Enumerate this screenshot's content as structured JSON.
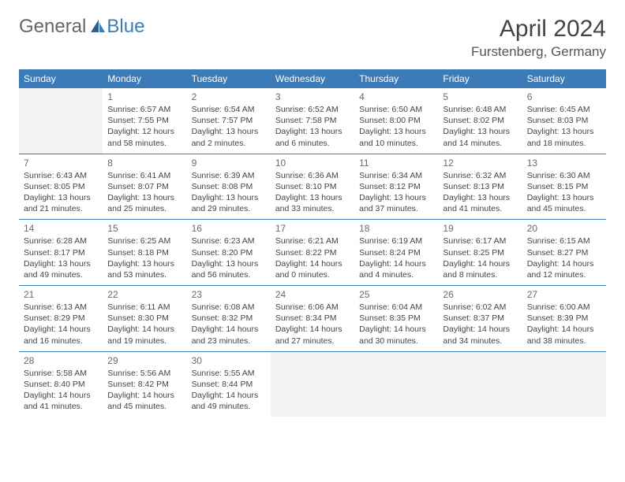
{
  "brand": {
    "part1": "General",
    "part2": "Blue",
    "accent": "#3d7bb8"
  },
  "header": {
    "title": "April 2024",
    "location": "Furstenberg, Germany"
  },
  "colors": {
    "header_bg": "#3d7bb8",
    "header_fg": "#ffffff",
    "border": "#3d7bb8",
    "empty_bg": "#f2f2f2",
    "text": "#444444"
  },
  "day_headers": [
    "Sunday",
    "Monday",
    "Tuesday",
    "Wednesday",
    "Thursday",
    "Friday",
    "Saturday"
  ],
  "weeks": [
    [
      {
        "empty": true
      },
      {
        "day": "1",
        "sunrise": "Sunrise: 6:57 AM",
        "sunset": "Sunset: 7:55 PM",
        "dl1": "Daylight: 12 hours",
        "dl2": "and 58 minutes."
      },
      {
        "day": "2",
        "sunrise": "Sunrise: 6:54 AM",
        "sunset": "Sunset: 7:57 PM",
        "dl1": "Daylight: 13 hours",
        "dl2": "and 2 minutes."
      },
      {
        "day": "3",
        "sunrise": "Sunrise: 6:52 AM",
        "sunset": "Sunset: 7:58 PM",
        "dl1": "Daylight: 13 hours",
        "dl2": "and 6 minutes."
      },
      {
        "day": "4",
        "sunrise": "Sunrise: 6:50 AM",
        "sunset": "Sunset: 8:00 PM",
        "dl1": "Daylight: 13 hours",
        "dl2": "and 10 minutes."
      },
      {
        "day": "5",
        "sunrise": "Sunrise: 6:48 AM",
        "sunset": "Sunset: 8:02 PM",
        "dl1": "Daylight: 13 hours",
        "dl2": "and 14 minutes."
      },
      {
        "day": "6",
        "sunrise": "Sunrise: 6:45 AM",
        "sunset": "Sunset: 8:03 PM",
        "dl1": "Daylight: 13 hours",
        "dl2": "and 18 minutes."
      }
    ],
    [
      {
        "day": "7",
        "sunrise": "Sunrise: 6:43 AM",
        "sunset": "Sunset: 8:05 PM",
        "dl1": "Daylight: 13 hours",
        "dl2": "and 21 minutes."
      },
      {
        "day": "8",
        "sunrise": "Sunrise: 6:41 AM",
        "sunset": "Sunset: 8:07 PM",
        "dl1": "Daylight: 13 hours",
        "dl2": "and 25 minutes."
      },
      {
        "day": "9",
        "sunrise": "Sunrise: 6:39 AM",
        "sunset": "Sunset: 8:08 PM",
        "dl1": "Daylight: 13 hours",
        "dl2": "and 29 minutes."
      },
      {
        "day": "10",
        "sunrise": "Sunrise: 6:36 AM",
        "sunset": "Sunset: 8:10 PM",
        "dl1": "Daylight: 13 hours",
        "dl2": "and 33 minutes."
      },
      {
        "day": "11",
        "sunrise": "Sunrise: 6:34 AM",
        "sunset": "Sunset: 8:12 PM",
        "dl1": "Daylight: 13 hours",
        "dl2": "and 37 minutes."
      },
      {
        "day": "12",
        "sunrise": "Sunrise: 6:32 AM",
        "sunset": "Sunset: 8:13 PM",
        "dl1": "Daylight: 13 hours",
        "dl2": "and 41 minutes."
      },
      {
        "day": "13",
        "sunrise": "Sunrise: 6:30 AM",
        "sunset": "Sunset: 8:15 PM",
        "dl1": "Daylight: 13 hours",
        "dl2": "and 45 minutes."
      }
    ],
    [
      {
        "day": "14",
        "sunrise": "Sunrise: 6:28 AM",
        "sunset": "Sunset: 8:17 PM",
        "dl1": "Daylight: 13 hours",
        "dl2": "and 49 minutes."
      },
      {
        "day": "15",
        "sunrise": "Sunrise: 6:25 AM",
        "sunset": "Sunset: 8:18 PM",
        "dl1": "Daylight: 13 hours",
        "dl2": "and 53 minutes."
      },
      {
        "day": "16",
        "sunrise": "Sunrise: 6:23 AM",
        "sunset": "Sunset: 8:20 PM",
        "dl1": "Daylight: 13 hours",
        "dl2": "and 56 minutes."
      },
      {
        "day": "17",
        "sunrise": "Sunrise: 6:21 AM",
        "sunset": "Sunset: 8:22 PM",
        "dl1": "Daylight: 14 hours",
        "dl2": "and 0 minutes."
      },
      {
        "day": "18",
        "sunrise": "Sunrise: 6:19 AM",
        "sunset": "Sunset: 8:24 PM",
        "dl1": "Daylight: 14 hours",
        "dl2": "and 4 minutes."
      },
      {
        "day": "19",
        "sunrise": "Sunrise: 6:17 AM",
        "sunset": "Sunset: 8:25 PM",
        "dl1": "Daylight: 14 hours",
        "dl2": "and 8 minutes."
      },
      {
        "day": "20",
        "sunrise": "Sunrise: 6:15 AM",
        "sunset": "Sunset: 8:27 PM",
        "dl1": "Daylight: 14 hours",
        "dl2": "and 12 minutes."
      }
    ],
    [
      {
        "day": "21",
        "sunrise": "Sunrise: 6:13 AM",
        "sunset": "Sunset: 8:29 PM",
        "dl1": "Daylight: 14 hours",
        "dl2": "and 16 minutes."
      },
      {
        "day": "22",
        "sunrise": "Sunrise: 6:11 AM",
        "sunset": "Sunset: 8:30 PM",
        "dl1": "Daylight: 14 hours",
        "dl2": "and 19 minutes."
      },
      {
        "day": "23",
        "sunrise": "Sunrise: 6:08 AM",
        "sunset": "Sunset: 8:32 PM",
        "dl1": "Daylight: 14 hours",
        "dl2": "and 23 minutes."
      },
      {
        "day": "24",
        "sunrise": "Sunrise: 6:06 AM",
        "sunset": "Sunset: 8:34 PM",
        "dl1": "Daylight: 14 hours",
        "dl2": "and 27 minutes."
      },
      {
        "day": "25",
        "sunrise": "Sunrise: 6:04 AM",
        "sunset": "Sunset: 8:35 PM",
        "dl1": "Daylight: 14 hours",
        "dl2": "and 30 minutes."
      },
      {
        "day": "26",
        "sunrise": "Sunrise: 6:02 AM",
        "sunset": "Sunset: 8:37 PM",
        "dl1": "Daylight: 14 hours",
        "dl2": "and 34 minutes."
      },
      {
        "day": "27",
        "sunrise": "Sunrise: 6:00 AM",
        "sunset": "Sunset: 8:39 PM",
        "dl1": "Daylight: 14 hours",
        "dl2": "and 38 minutes."
      }
    ],
    [
      {
        "day": "28",
        "sunrise": "Sunrise: 5:58 AM",
        "sunset": "Sunset: 8:40 PM",
        "dl1": "Daylight: 14 hours",
        "dl2": "and 41 minutes."
      },
      {
        "day": "29",
        "sunrise": "Sunrise: 5:56 AM",
        "sunset": "Sunset: 8:42 PM",
        "dl1": "Daylight: 14 hours",
        "dl2": "and 45 minutes."
      },
      {
        "day": "30",
        "sunrise": "Sunrise: 5:55 AM",
        "sunset": "Sunset: 8:44 PM",
        "dl1": "Daylight: 14 hours",
        "dl2": "and 49 minutes."
      },
      {
        "empty": true
      },
      {
        "empty": true
      },
      {
        "empty": true
      },
      {
        "empty": true
      }
    ]
  ]
}
